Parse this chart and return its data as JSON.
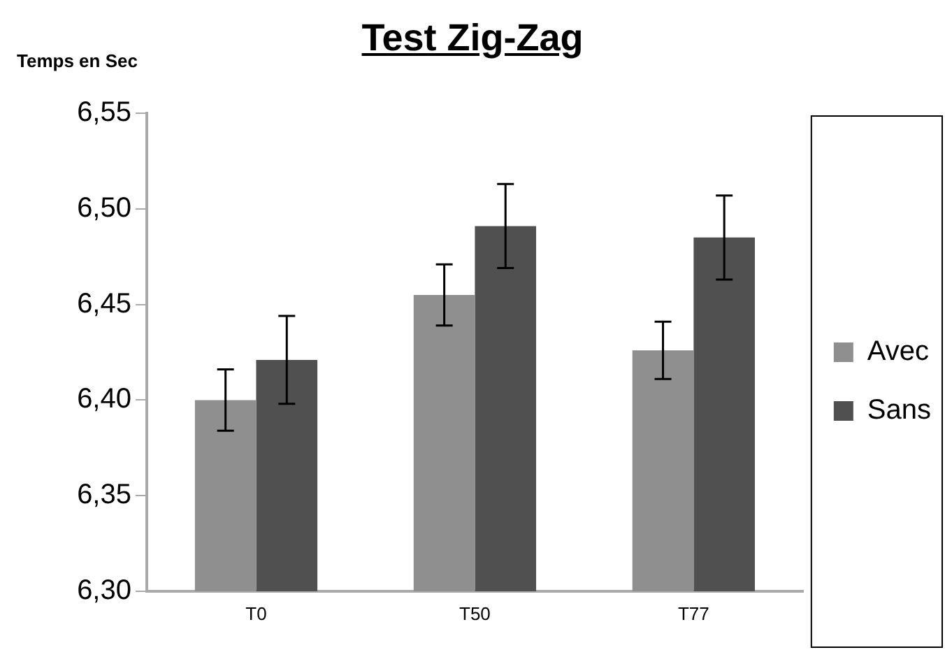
{
  "chart_data": {
    "type": "bar",
    "title": "Test Zig-Zag",
    "ylabel": "Temps en Sec",
    "categories": [
      "T0",
      "T50",
      "T77"
    ],
    "series": [
      {
        "name": "Avec",
        "color": "#8f8f8f",
        "values": [
          6.4,
          6.455,
          6.426
        ],
        "errors": [
          0.016,
          0.016,
          0.015
        ]
      },
      {
        "name": "Sans",
        "color": "#505050",
        "values": [
          6.421,
          6.491,
          6.485
        ],
        "errors": [
          0.023,
          0.022,
          0.022
        ]
      }
    ],
    "ylim": [
      6.3,
      6.55
    ],
    "yticks": [
      {
        "value": 6.3,
        "label": "6,30"
      },
      {
        "value": 6.35,
        "label": "6,35"
      },
      {
        "value": 6.4,
        "label": "6,40"
      },
      {
        "value": 6.45,
        "label": "6,45"
      },
      {
        "value": 6.5,
        "label": "6,50"
      },
      {
        "value": 6.55,
        "label": "6,55"
      }
    ],
    "grid": false,
    "legend": "right"
  }
}
